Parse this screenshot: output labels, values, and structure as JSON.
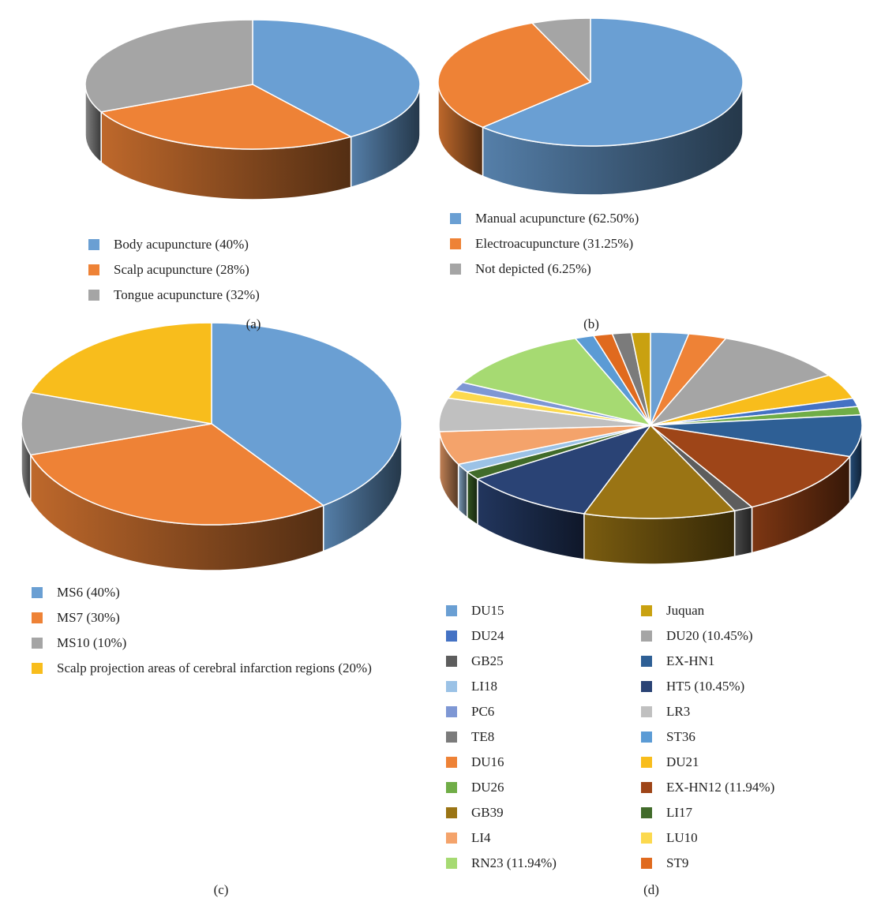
{
  "chart_data": [
    {
      "id": "a",
      "type": "pie",
      "caption": "(a)",
      "slices": [
        {
          "label": "Body acupuncture (40%)",
          "value": 40,
          "color": "#6a9fd3"
        },
        {
          "label": "Scalp acupuncture (28%)",
          "value": 28,
          "color": "#ee8236"
        },
        {
          "label": "Tongue acupuncture (32%)",
          "value": 32,
          "color": "#a5a5a5"
        }
      ]
    },
    {
      "id": "b",
      "type": "pie",
      "caption": "(b)",
      "slices": [
        {
          "label": "Manual acupuncture (62.50%)",
          "value": 62.5,
          "color": "#6a9fd3"
        },
        {
          "label": "Electroacupuncture (31.25%)",
          "value": 31.25,
          "color": "#ee8236"
        },
        {
          "label": "Not depicted (6.25%)",
          "value": 6.25,
          "color": "#a5a5a5"
        }
      ]
    },
    {
      "id": "c",
      "type": "pie",
      "caption": "(c)",
      "slices": [
        {
          "label": "MS6 (40%)",
          "value": 40,
          "color": "#6a9fd3"
        },
        {
          "label": "MS7 (30%)",
          "value": 30,
          "color": "#ee8236"
        },
        {
          "label": "MS10 (10%)",
          "value": 10,
          "color": "#a5a5a5"
        },
        {
          "label": "Scalp projection areas of cerebral infarction regions (20%)",
          "value": 20,
          "color": "#f8bd1c"
        }
      ]
    },
    {
      "id": "d",
      "type": "pie",
      "caption": "(d)",
      "slices": [
        {
          "label": "DU15",
          "value": 2.99,
          "color": "#6a9fd3"
        },
        {
          "label": "DU16",
          "value": 2.99,
          "color": "#ee8236"
        },
        {
          "label": "DU20 (10.45%)",
          "value": 10.45,
          "color": "#a5a5a5"
        },
        {
          "label": "DU21",
          "value": 4.48,
          "color": "#f8bd1c"
        },
        {
          "label": "DU24",
          "value": 1.49,
          "color": "#4472c4"
        },
        {
          "label": "DU26",
          "value": 1.49,
          "color": "#70ad47"
        },
        {
          "label": "EX-HN1",
          "value": 7.46,
          "color": "#2e5f95"
        },
        {
          "label": "EX-HN12 (11.94%)",
          "value": 11.94,
          "color": "#9e4518"
        },
        {
          "label": "GB25",
          "value": 1.49,
          "color": "#5d5d5d"
        },
        {
          "label": "GB39",
          "value": 11.94,
          "color": "#9a7414"
        },
        {
          "label": "HT5 (10.45%)",
          "value": 10.45,
          "color": "#2a4375"
        },
        {
          "label": "LI17",
          "value": 1.49,
          "color": "#416b2a"
        },
        {
          "label": "LI18",
          "value": 1.49,
          "color": "#9bc2e6"
        },
        {
          "label": "LI4",
          "value": 5.97,
          "color": "#f4a36b"
        },
        {
          "label": "LR3",
          "value": 5.97,
          "color": "#c0c0c0"
        },
        {
          "label": "LU10",
          "value": 1.49,
          "color": "#fcd94e"
        },
        {
          "label": "PC6",
          "value": 1.49,
          "color": "#7e97d4"
        },
        {
          "label": "RN23 (11.94%)",
          "value": 11.94,
          "color": "#a6da72"
        },
        {
          "label": "ST36",
          "value": 1.49,
          "color": "#5b9bd5"
        },
        {
          "label": "ST9",
          "value": 1.49,
          "color": "#e06a1e"
        },
        {
          "label": "TE8",
          "value": 1.49,
          "color": "#7b7b7b"
        },
        {
          "label": "Juquan",
          "value": 1.49,
          "color": "#c9a110"
        }
      ],
      "legend_col1": [
        "DU15",
        "DU24",
        "GB25",
        "LI18",
        "PC6",
        "TE8",
        "DU16",
        "DU26",
        "GB39",
        "LI4",
        "RN23 (11.94%)"
      ],
      "legend_col2": [
        "Juquan",
        "DU20 (10.45%)",
        "EX-HN1",
        "HT5 (10.45%)",
        "LR3",
        "ST36",
        "DU21",
        "EX-HN12 (11.94%)",
        "LI17",
        "LU10",
        "ST9"
      ]
    }
  ]
}
